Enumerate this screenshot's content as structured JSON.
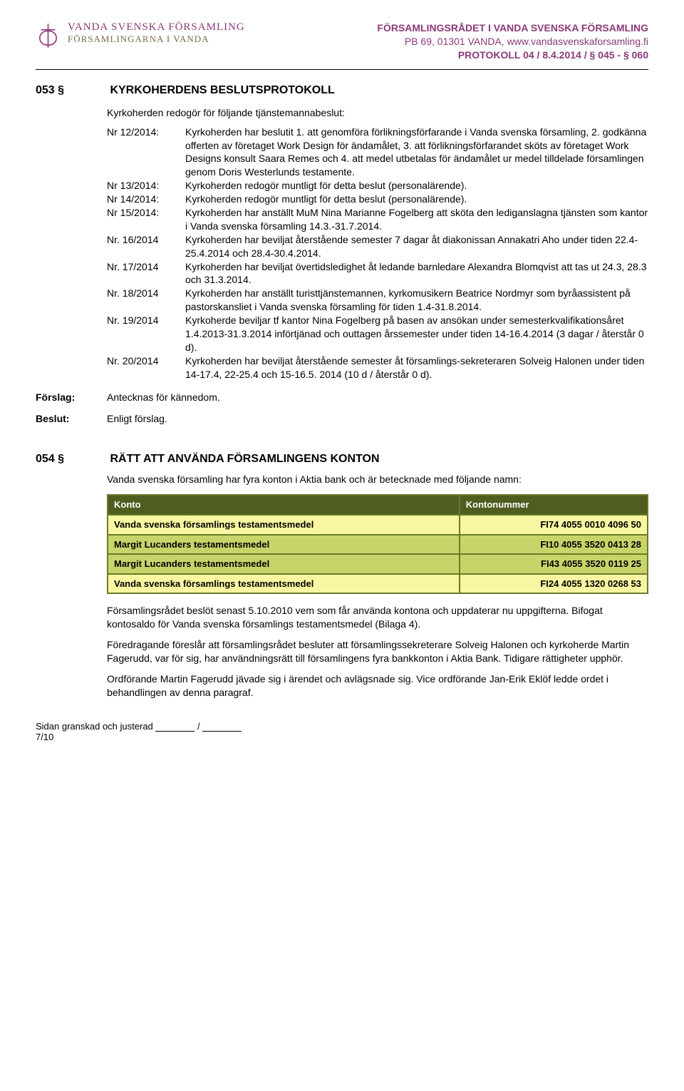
{
  "header": {
    "org_line1": "VANDA SVENSKA FÖRSAMLING",
    "org_line2": "FÖRSAMLINGARNA I VANDA",
    "right_line1": "FÖRSAMLINGSRÅDET I VANDA SVENSKA FÖRSAMLING",
    "right_line2": "PB 69, 01301 VANDA, www.vandasvenskaforsamling.fi",
    "right_line3": "PROTOKOLL 04 / 8.4.2014 / § 045 - § 060",
    "logo_stroke": "#8a3a7a"
  },
  "section053": {
    "num": "053 §",
    "title": "KYRKOHERDENS BESLUTSPROTOKOLL",
    "intro": "Kyrkoherden redogör för följande tjänstemannabeslut:",
    "items": [
      {
        "label": "Nr 12/2014:",
        "text": "Kyrkoherden har beslutit 1. att genomföra förlikningsförfarande i Vanda svenska församling, 2. godkänna offerten av företaget Work Design för ändamålet, 3. att förlikningsförfarandet sköts av företaget Work Designs konsult Saara Remes och 4. att medel utbetalas för ändamålet ur medel tilldelade församlingen genom Doris Westerlunds testamente."
      },
      {
        "label": "Nr 13/2014:",
        "text": "Kyrkoherden redogör muntligt för detta beslut (personalärende)."
      },
      {
        "label": "Nr 14/2014:",
        "text": "Kyrkoherden redogör muntligt för detta beslut (personalärende)."
      },
      {
        "label": "Nr 15/2014:",
        "text": "Kyrkoherden har anställt MuM Nina Marianne Fogelberg att sköta den lediganslagna tjänsten som kantor i Vanda svenska församling 14.3.-31.7.2014."
      },
      {
        "label": "Nr. 16/2014",
        "text": "Kyrkoherden har beviljat återstående semester 7 dagar åt diakonissan Annakatri Aho under tiden 22.4-25.4.2014 och 28.4-30.4.2014."
      },
      {
        "label": "Nr. 17/2014",
        "text": "Kyrkoherden har beviljat övertidsledighet åt  ledande barnledare Alexandra Blomqvist att tas ut 24.3, 28.3 och 31.3.2014."
      },
      {
        "label": "Nr. 18/2014",
        "text": "Kyrkoherden har anställt turisttjänstemannen, kyrkomusikern Beatrice Nordmyr som byråassistent på pastorskansliet i Vanda svenska församling för tiden 1.4-31.8.2014."
      },
      {
        "label": "Nr. 19/2014",
        "text": "Kyrkoherde beviljar tf kantor Nina Fogelberg på basen av ansökan under semesterkvalifikationsåret 1.4.2013-31.3.2014 införtjänad och outtagen årssemester under tiden 14-16.4.2014 (3 dagar / återstår 0 d)."
      },
      {
        "label": "Nr. 20/2014",
        "text": "Kyrkoherden har beviljat återstående semester åt församlings-sekreteraren Solveig Halonen under tiden 14-17.4, 22-25.4 och 15-16.5. 2014 (10 d / återstår 0 d)."
      }
    ],
    "forslag_label": "Förslag:",
    "forslag_text": "Antecknas för kännedom.",
    "beslut_label": "Beslut:",
    "beslut_text": "Enligt förslag."
  },
  "section054": {
    "num": "054 §",
    "title": "RÄTT ATT ANVÄNDA FÖRSAMLINGENS KONTON",
    "intro": "Vanda svenska församling har fyra konton i Aktia bank och är betecknade med följande namn:",
    "table": {
      "header_bg": "#4f5d1f",
      "border_color": "#6a7a2a",
      "col1": "Konto",
      "col2": "Kontonummer",
      "rows": [
        {
          "name": "Vanda svenska församlings testamentsmedel",
          "num": "FI74 4055 0010 4096 50",
          "bg": "#f8f6a0"
        },
        {
          "name": "Margit Lucanders testamentsmedel",
          "num": "FI10 4055 3520 0413 28",
          "bg": "#c8d46a"
        },
        {
          "name": "Margit Lucanders testamentsmedel",
          "num": "FI43 4055 3520 0119 25",
          "bg": "#c8d46a"
        },
        {
          "name": "Vanda svenska församlings testamentsmedel",
          "num": "FI24 4055 1320 0268 53",
          "bg": "#f8f6a0"
        }
      ]
    },
    "para1": "Församlingsrådet beslöt senast 5.10.2010 vem som får använda kontona och uppdaterar nu uppgifterna. Bifogat kontosaldo för Vanda svenska församlings testamentsmedel (Bilaga 4).",
    "para2": "Föredragande föreslår att församlingsrådet besluter att församlingssekreterare Solveig Halonen och kyrkoherde Martin Fagerudd, var för sig, har användningsrätt till församlingens fyra bankkonton i Aktia Bank. Tidigare rättigheter upphör.",
    "para3": "Ordförande Martin Fagerudd jävade sig i ärendet och avlägsnade sig. Vice ordförande Jan-Erik Eklöf ledde ordet i behandlingen av denna paragraf."
  },
  "footer": {
    "text": "Sidan granskad och justerad",
    "page": "7/10"
  }
}
